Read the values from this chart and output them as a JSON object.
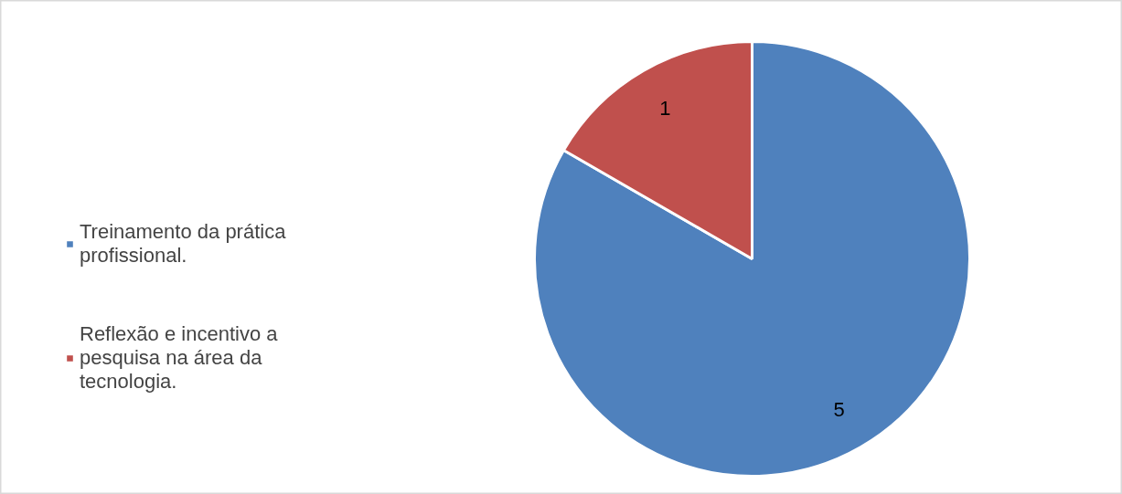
{
  "chart_data": {
    "type": "pie",
    "categories": [
      "Treinamento da prática profissional.",
      "Reflexão e incentivo a pesquisa na área da tecnologia."
    ],
    "values": [
      5,
      1
    ],
    "colors": [
      "#4f81bd",
      "#c0504d"
    ],
    "data_labels": true,
    "legend": "left"
  }
}
